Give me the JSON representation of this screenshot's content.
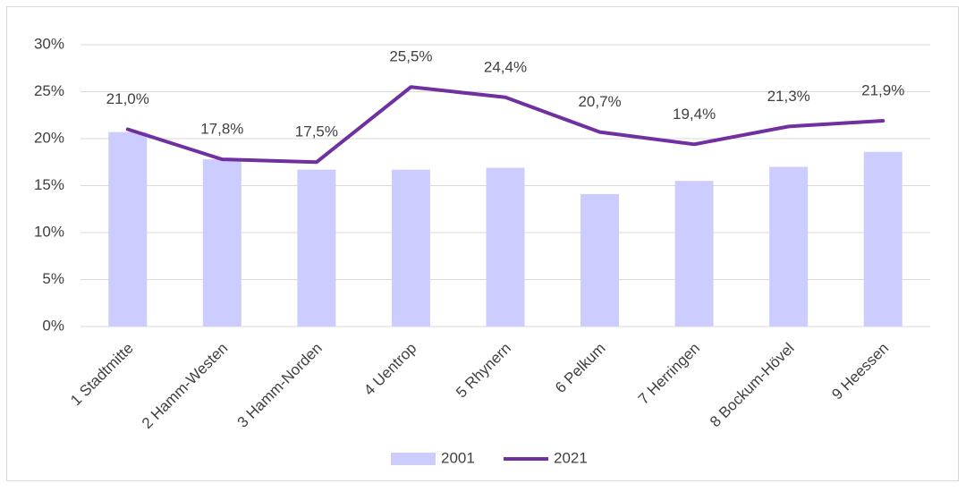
{
  "chart_data": {
    "type": "combo",
    "categories": [
      "1 Stadtmitte",
      "2 Hamm-Westen",
      "3 Hamm-Norden",
      "4 Uentrop",
      "5 Rhynern",
      "6 Pelkum",
      "7 Herringen",
      "8 Bockum-Hövel",
      "9 Heessen"
    ],
    "series": [
      {
        "name": "2001",
        "type": "bar",
        "color": "#ccccff",
        "values": [
          20.7,
          17.8,
          16.7,
          16.7,
          16.9,
          14.1,
          15.5,
          17.0,
          18.6
        ]
      },
      {
        "name": "2021",
        "type": "line",
        "color": "#7030a0",
        "values": [
          21.0,
          17.8,
          17.5,
          25.5,
          24.4,
          20.7,
          19.4,
          21.3,
          21.9
        ],
        "value_labels": [
          "21,0%",
          "17,8%",
          "17,5%",
          "25,5%",
          "24,4%",
          "20,7%",
          "19,4%",
          "21,3%",
          "21,9%"
        ]
      }
    ],
    "ylim": [
      0,
      30
    ],
    "yticks": [
      {
        "value": 0,
        "label": "0%"
      },
      {
        "value": 5,
        "label": "5%"
      },
      {
        "value": 10,
        "label": "10%"
      },
      {
        "value": 15,
        "label": "15%"
      },
      {
        "value": 20,
        "label": "20%"
      },
      {
        "value": 25,
        "label": "25%"
      },
      {
        "value": 30,
        "label": "30%"
      }
    ],
    "grid": true,
    "legend": "bottom"
  }
}
